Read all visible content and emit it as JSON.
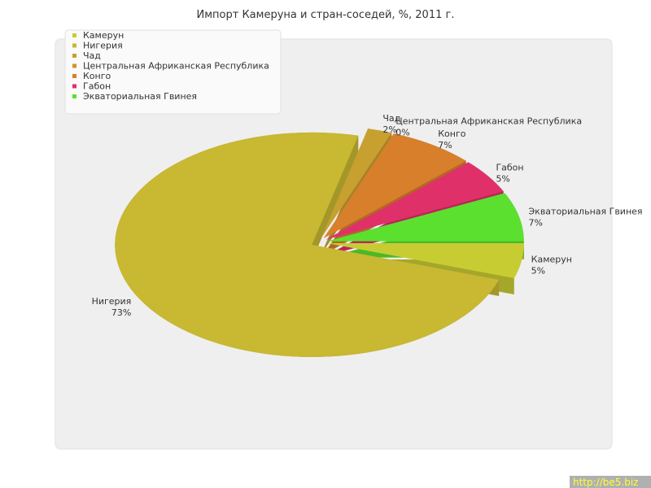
{
  "chart_data": {
    "type": "pie",
    "title": "Импорт Камеруна и стран-соседей, %, 2011 г.",
    "categories": [
      "Камерун",
      "Нигерия",
      "Чад",
      "Центральная Африканская Республика",
      "Конго",
      "Габон",
      "Экваториальная Гвинея"
    ],
    "values": [
      5,
      73,
      2,
      0,
      7,
      5,
      7
    ],
    "value_labels": [
      "5%",
      "73%",
      "2%",
      "0%",
      "7%",
      "5%",
      "7%"
    ],
    "colors": [
      "#c8cc33",
      "#c8b832",
      "#c8a030",
      "#d4902a",
      "#d87f2c",
      "#e0306a",
      "#5ce030"
    ],
    "legend": "top-left"
  },
  "watermark": "http://be5.biz"
}
